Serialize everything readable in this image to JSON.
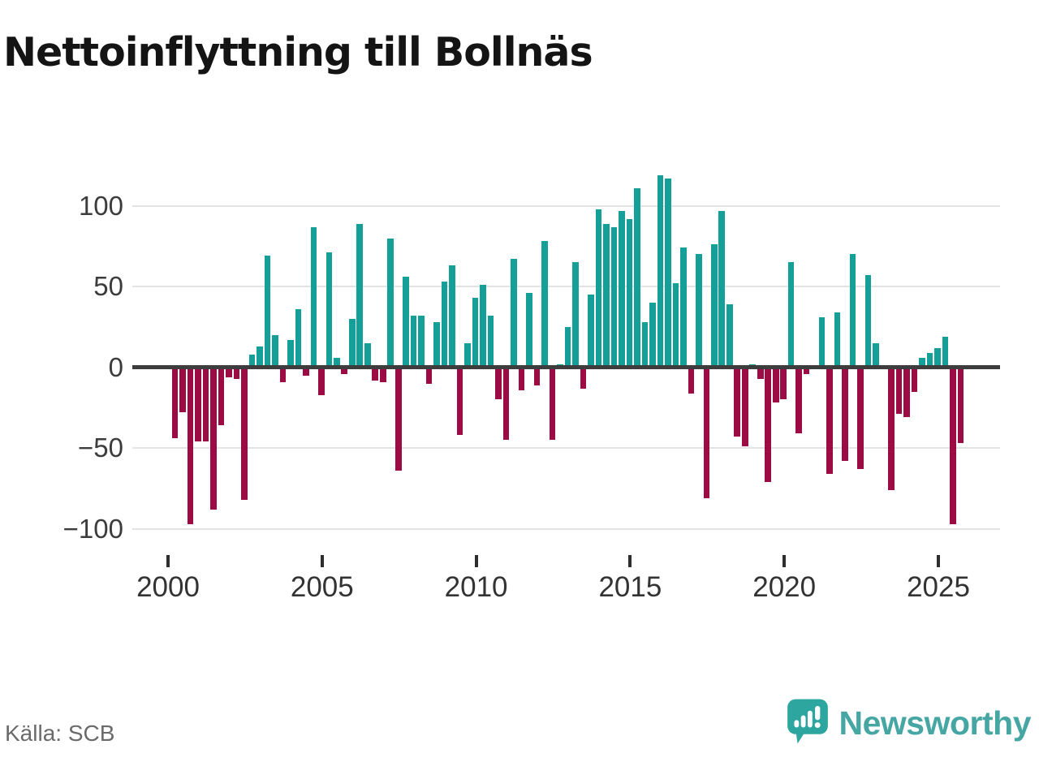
{
  "title": "Nettoinflyttning till Bollnäs",
  "source": "Källa: SCB",
  "branding": {
    "name": "Newsworthy"
  },
  "colors": {
    "positive": "#14a098",
    "negative": "#9d0b45",
    "gridline": "#e3e3e3",
    "zero_line": "#3d3d3d",
    "title_text": "#141414",
    "axis_text": "#3c3c3c",
    "source_text": "#6a6a6a",
    "brand_teal": "#45a6a3",
    "logo_bubble": "#2ca69e"
  },
  "chart_data": {
    "type": "bar",
    "title": "Nettoinflyttning till Bollnäs",
    "xlabel": "",
    "ylabel": "",
    "grid": "horizontal",
    "legend": "none",
    "y_ticks": [
      100,
      50,
      0,
      -50,
      -100
    ],
    "y_tick_labels": [
      "100",
      "50",
      "0",
      "−50",
      "−100"
    ],
    "ylim": [
      -112,
      126
    ],
    "x_tick_years": [
      2000,
      2005,
      2010,
      2015,
      2020,
      2025
    ],
    "x_tick_labels": [
      "2000",
      "2005",
      "2010",
      "2015",
      "2020",
      "2025"
    ],
    "frequency": "quarterly",
    "quarters": [
      "2000Q1",
      "2000Q2",
      "2000Q3",
      "2000Q4",
      "2001Q1",
      "2001Q2",
      "2001Q3",
      "2001Q4",
      "2002Q1",
      "2002Q2",
      "2002Q3",
      "2002Q4",
      "2003Q1",
      "2003Q2",
      "2003Q3",
      "2003Q4",
      "2004Q1",
      "2004Q2",
      "2004Q3",
      "2004Q4",
      "2005Q1",
      "2005Q2",
      "2005Q3",
      "2005Q4",
      "2006Q1",
      "2006Q2",
      "2006Q3",
      "2006Q4",
      "2007Q1",
      "2007Q2",
      "2007Q3",
      "2007Q4",
      "2008Q1",
      "2008Q2",
      "2008Q3",
      "2008Q4",
      "2009Q1",
      "2009Q2",
      "2009Q3",
      "2009Q4",
      "2010Q1",
      "2010Q2",
      "2010Q3",
      "2010Q4",
      "2011Q1",
      "2011Q2",
      "2011Q3",
      "2011Q4",
      "2012Q1",
      "2012Q2",
      "2012Q3",
      "2012Q4",
      "2013Q1",
      "2013Q2",
      "2013Q3",
      "2013Q4",
      "2014Q1",
      "2014Q2",
      "2014Q3",
      "2014Q4",
      "2015Q1",
      "2015Q2",
      "2015Q3",
      "2015Q4",
      "2016Q1",
      "2016Q2",
      "2016Q3",
      "2016Q4",
      "2017Q1",
      "2017Q2",
      "2017Q3",
      "2017Q4",
      "2018Q1",
      "2018Q2",
      "2018Q3",
      "2018Q4",
      "2019Q1",
      "2019Q2",
      "2019Q3",
      "2019Q4",
      "2020Q1",
      "2020Q2",
      "2020Q3",
      "2020Q4",
      "2021Q1",
      "2021Q2",
      "2021Q3",
      "2021Q4",
      "2022Q1",
      "2022Q2",
      "2022Q3",
      "2022Q4",
      "2023Q1",
      "2023Q2",
      "2023Q3",
      "2023Q4",
      "2024Q1",
      "2024Q2",
      "2024Q3",
      "2024Q4",
      "2025Q1",
      "2025Q2",
      "2025Q3"
    ],
    "values": [
      -44,
      -28,
      -97,
      -46,
      -46,
      -88,
      -36,
      -6,
      -7,
      -82,
      8,
      13,
      69,
      20,
      -9,
      17,
      36,
      -5,
      87,
      -17,
      71,
      6,
      -4,
      30,
      89,
      15,
      -8,
      -9,
      80,
      -64,
      56,
      32,
      32,
      -10,
      28,
      53,
      63,
      -42,
      15,
      43,
      51,
      32,
      -20,
      -45,
      67,
      -14,
      46,
      -11,
      78,
      -45,
      2,
      25,
      65,
      -13,
      45,
      98,
      89,
      87,
      97,
      92,
      111,
      28,
      40,
      119,
      117,
      52,
      74,
      -16,
      70,
      -81,
      76,
      97,
      39,
      -43,
      -49,
      2,
      -7,
      -71,
      -22,
      -20,
      65,
      -41,
      -4,
      0,
      31,
      -66,
      34,
      -58,
      70,
      -63,
      57,
      15,
      0,
      -76,
      -29,
      -31,
      -15,
      6,
      9,
      12,
      19,
      -97,
      -47
    ]
  }
}
